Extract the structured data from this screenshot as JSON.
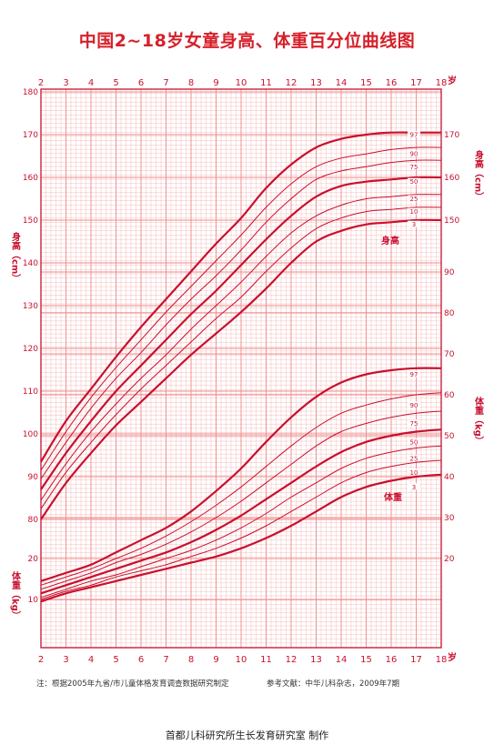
{
  "title": "中国2~18岁女童身高、体重百分位曲线图",
  "footer": {
    "note": "注：根据2005年九省/市儿童体格发育调查数据研究制定",
    "reference": "参考文献：中华儿科杂志，2009年7期",
    "maker": "首都儿科研究所生长发育研究室 制作"
  },
  "colors": {
    "grid": "#f08a8a",
    "curve": "#c8102e",
    "text": "#c8102e"
  },
  "chart_data": [
    {
      "type": "line",
      "title": "身高",
      "xlabel": "岁",
      "ylabel": "身高（cm）",
      "xlim": [
        2,
        18
      ],
      "ylim": [
        75,
        180
      ],
      "x": [
        2,
        3,
        4,
        5,
        6,
        7,
        8,
        9,
        10,
        11,
        12,
        13,
        14,
        15,
        16,
        17,
        18
      ],
      "x_ticks": [
        "2",
        "3",
        "4",
        "5",
        "6",
        "7",
        "8",
        "9",
        "10",
        "11",
        "12",
        "13",
        "14",
        "15",
        "16",
        "17",
        "18"
      ],
      "y_ticks_left": [
        "80",
        "90",
        "100",
        "110",
        "120",
        "130",
        "140",
        "150",
        "160",
        "170",
        "180"
      ],
      "y_ticks_right": [
        "150",
        "160",
        "170"
      ],
      "series": [
        {
          "name": "3",
          "values": [
            80.0,
            88.5,
            95.5,
            102.0,
            107.5,
            113.0,
            118.5,
            123.5,
            128.5,
            134.0,
            140.0,
            145.0,
            147.5,
            149.0,
            149.5,
            150.0,
            150.0
          ]
        },
        {
          "name": "10",
          "values": [
            82.5,
            91.0,
            98.0,
            104.5,
            110.5,
            116.0,
            121.5,
            127.0,
            132.0,
            138.0,
            143.5,
            148.0,
            150.5,
            152.0,
            152.5,
            153.0,
            153.0
          ]
        },
        {
          "name": "25",
          "values": [
            84.5,
            93.0,
            100.5,
            107.0,
            113.0,
            118.5,
            124.5,
            130.0,
            135.5,
            141.5,
            147.0,
            151.0,
            153.5,
            155.0,
            155.5,
            156.0,
            156.0
          ]
        },
        {
          "name": "50",
          "values": [
            87.0,
            95.5,
            103.0,
            110.0,
            116.0,
            122.0,
            128.0,
            133.5,
            139.5,
            145.5,
            151.0,
            155.5,
            158.0,
            159.0,
            159.5,
            160.0,
            160.0
          ]
        },
        {
          "name": "75",
          "values": [
            89.5,
            98.0,
            106.0,
            113.0,
            119.0,
            125.5,
            131.5,
            137.0,
            143.0,
            149.5,
            155.0,
            159.5,
            161.5,
            162.5,
            163.5,
            164.0,
            164.0
          ]
        },
        {
          "name": "90",
          "values": [
            91.5,
            100.5,
            108.5,
            115.5,
            122.0,
            128.5,
            134.5,
            140.5,
            146.5,
            153.0,
            158.5,
            162.5,
            164.5,
            165.5,
            166.5,
            167.0,
            167.0
          ]
        },
        {
          "name": "97",
          "values": [
            93.5,
            103.0,
            110.5,
            118.0,
            125.0,
            131.5,
            138.0,
            144.5,
            150.5,
            157.5,
            163.0,
            167.0,
            169.0,
            170.0,
            170.5,
            170.5,
            170.5
          ]
        }
      ],
      "annotation": "身高"
    },
    {
      "type": "line",
      "title": "体重",
      "xlabel": "岁",
      "ylabel": "体重（kg）",
      "xlim": [
        2,
        18
      ],
      "ylim": [
        5,
        95
      ],
      "x": [
        2,
        3,
        4,
        5,
        6,
        7,
        8,
        9,
        10,
        11,
        12,
        13,
        14,
        15,
        16,
        17,
        18
      ],
      "y_ticks_left": [
        "10",
        "20"
      ],
      "y_ticks_right": [
        "20",
        "30",
        "40",
        "50",
        "60",
        "70",
        "80",
        "90"
      ],
      "series": [
        {
          "name": "3",
          "values": [
            9.5,
            11.5,
            13.0,
            14.5,
            16.0,
            17.5,
            19.0,
            20.5,
            22.5,
            25.0,
            28.0,
            31.5,
            35.0,
            37.5,
            39.0,
            40.0,
            40.5
          ]
        },
        {
          "name": "10",
          "values": [
            10.0,
            12.0,
            13.5,
            15.5,
            17.0,
            18.5,
            20.5,
            22.5,
            25.0,
            28.0,
            31.5,
            35.0,
            38.5,
            41.0,
            42.5,
            43.5,
            44.0
          ]
        },
        {
          "name": "25",
          "values": [
            10.5,
            12.5,
            14.5,
            16.0,
            18.0,
            20.0,
            22.0,
            24.5,
            27.5,
            31.0,
            35.0,
            38.5,
            42.0,
            44.5,
            46.0,
            47.0,
            47.5
          ]
        },
        {
          "name": "50",
          "values": [
            11.5,
            13.5,
            15.5,
            17.5,
            19.5,
            21.5,
            24.0,
            27.0,
            30.5,
            34.5,
            38.5,
            42.5,
            46.0,
            48.5,
            50.0,
            51.0,
            51.5
          ]
        },
        {
          "name": "75",
          "values": [
            12.5,
            14.5,
            16.5,
            19.0,
            21.0,
            23.5,
            26.5,
            30.0,
            34.0,
            38.5,
            43.0,
            47.5,
            51.0,
            53.0,
            54.5,
            55.5,
            56.0
          ]
        },
        {
          "name": "90",
          "values": [
            13.5,
            15.5,
            17.5,
            20.0,
            22.5,
            25.5,
            29.0,
            33.0,
            37.5,
            42.5,
            47.5,
            52.0,
            55.5,
            57.5,
            59.0,
            60.0,
            60.5
          ]
        },
        {
          "name": "97",
          "values": [
            14.5,
            16.5,
            18.5,
            21.5,
            24.5,
            27.5,
            31.5,
            36.5,
            42.0,
            48.5,
            54.5,
            59.5,
            63.0,
            65.0,
            66.0,
            66.5,
            66.5
          ]
        }
      ],
      "annotation": "体重"
    }
  ]
}
